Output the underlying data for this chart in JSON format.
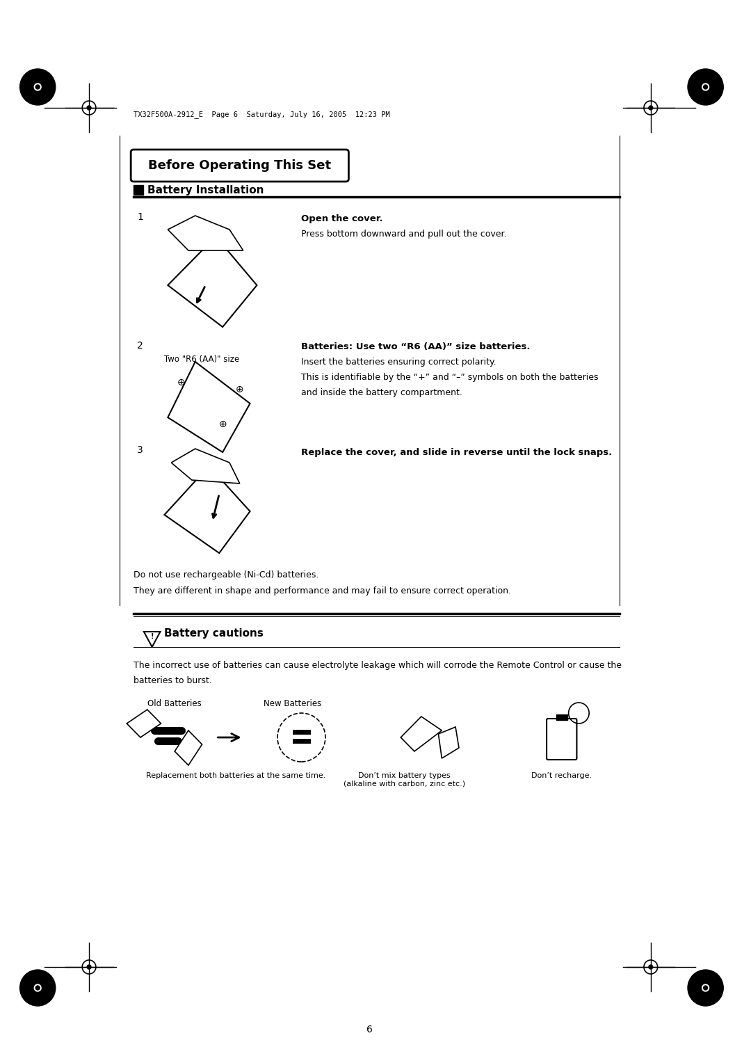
{
  "bg_color": "#ffffff",
  "page_number": "6",
  "header_text": "TX32F500A-2912_E  Page 6  Saturday, July 16, 2005  12:23 PM",
  "title": "Before Operating This Set",
  "section1_title": "Battery Installation",
  "step1_num": "1",
  "step1_bold": "Open the cover.",
  "step1_text": "Press bottom downward and pull out the cover.",
  "step2_num": "2",
  "step2_label": "Two \"R6 (AA)\" size",
  "step2_bold": "Batteries: Use two “R6 (AA)” size batteries.",
  "step2_text1": "Insert the batteries ensuring correct polarity.",
  "step2_text2": "This is identifiable by the “+” and “–” symbols on both the batteries",
  "step2_text3": "and inside the battery compartment.",
  "step3_num": "3",
  "step3_bold": "Replace the cover, and slide in reverse until the lock snaps.",
  "note1": "Do not use rechargeable (Ni-Cd) batteries.",
  "note2": "They are different in shape and performance and may fail to ensure correct operation.",
  "section2_title": "⚠ Battery cautions",
  "caution_text1": "The incorrect use of batteries can cause electrolyte leakage which will corrode the Remote Control or cause the",
  "caution_text2": "batteries to burst.",
  "label_old": "Old Batteries",
  "label_new": "New Batteries",
  "caption1": "Replacement both batteries at the same time.",
  "caption2": "Don’t mix battery types\n(alkaline with carbon, zinc etc.)",
  "caption3": "Don’t recharge."
}
